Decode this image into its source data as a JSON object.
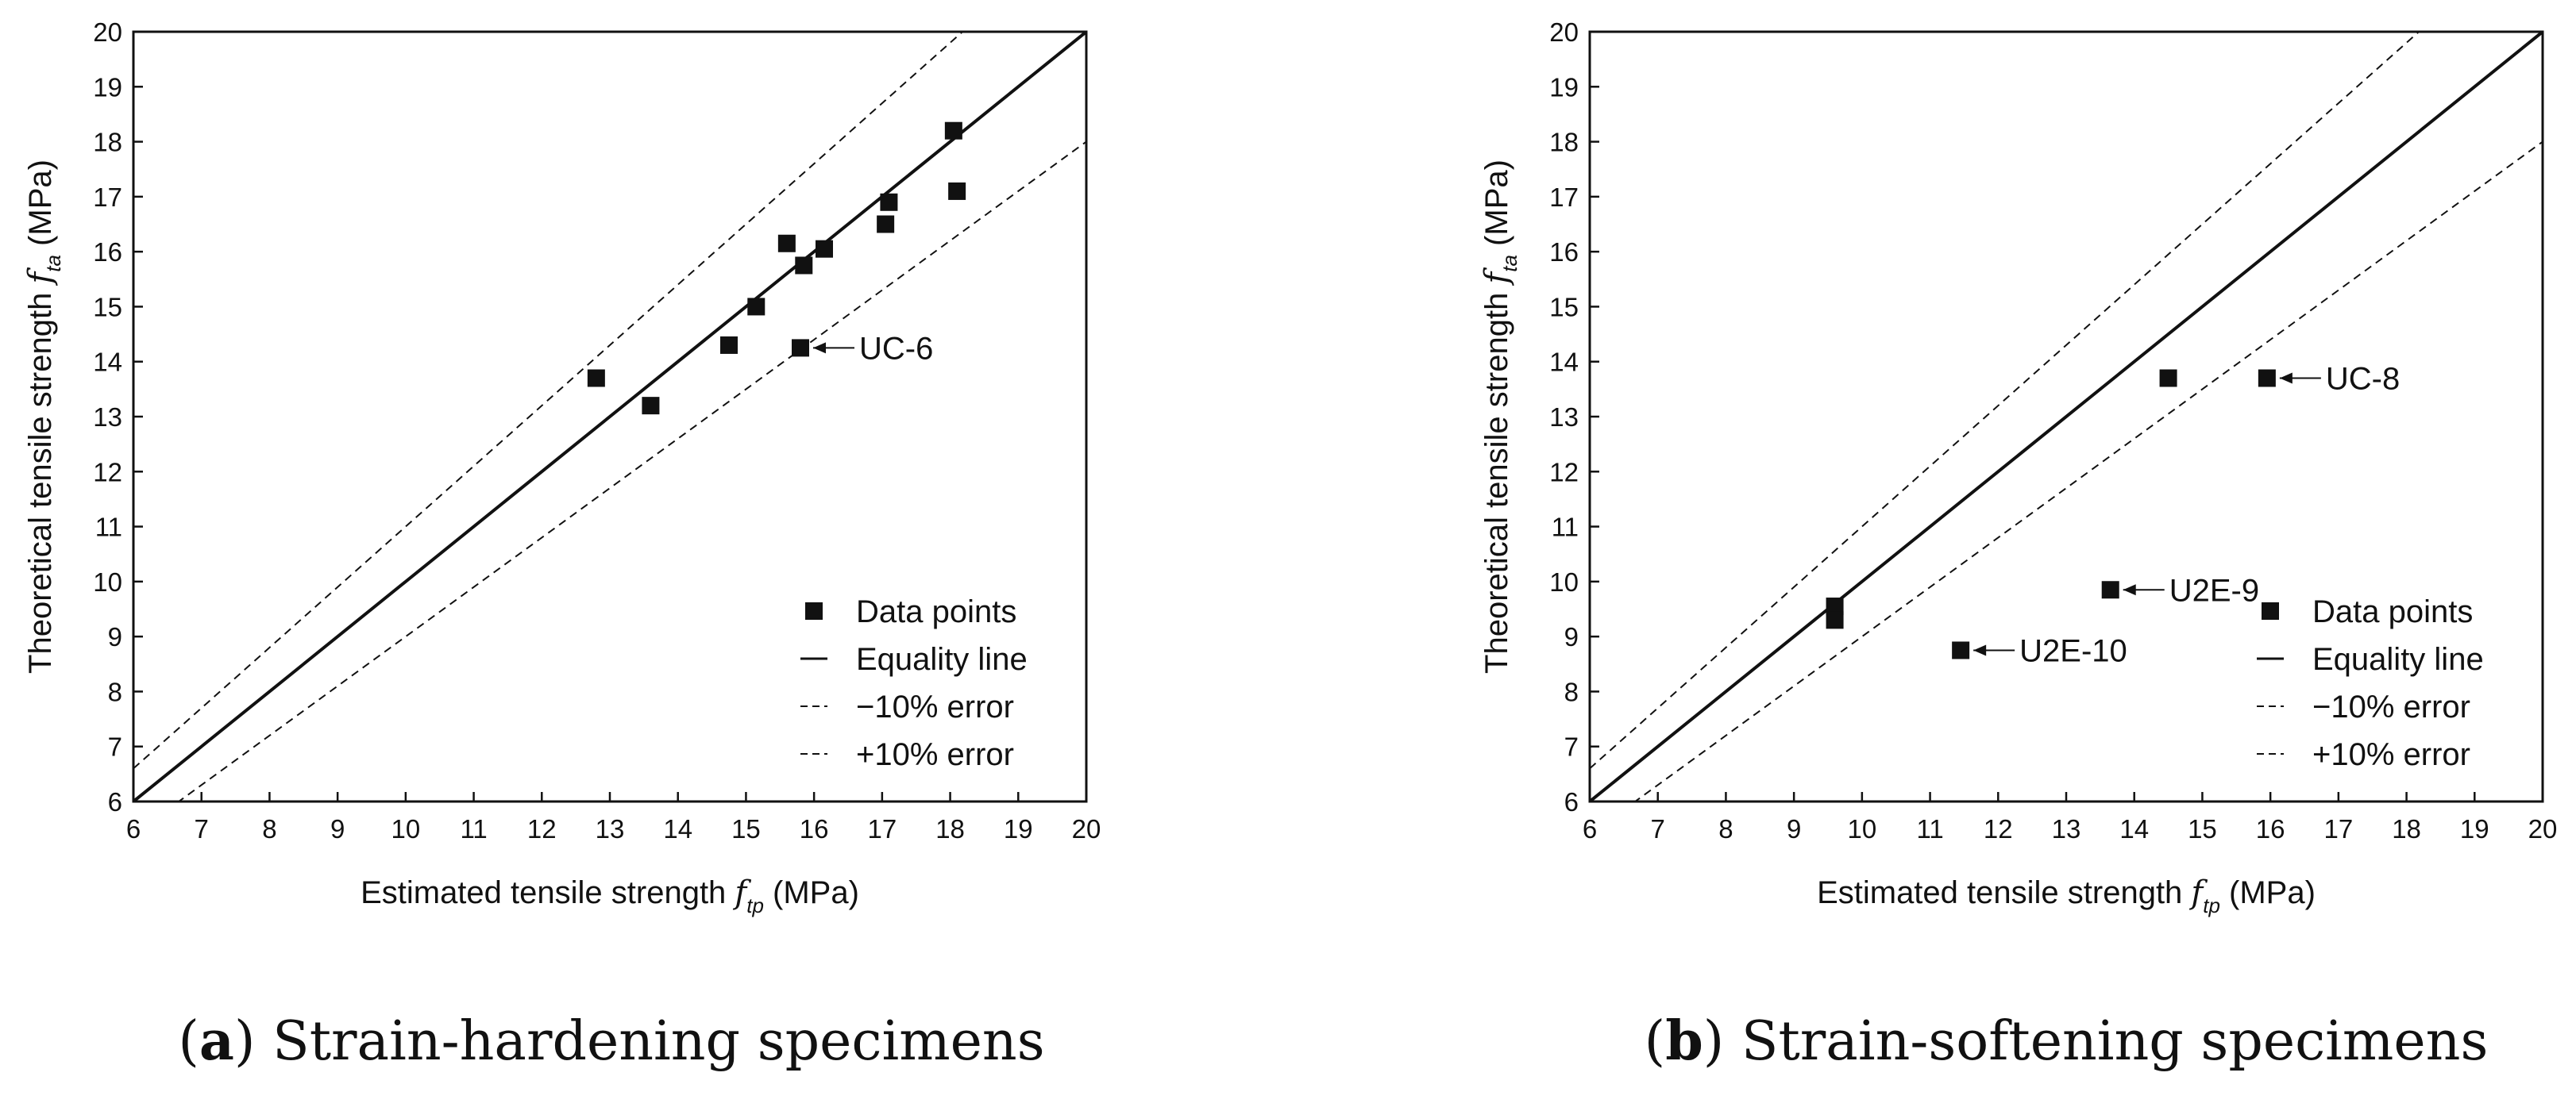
{
  "chart_data": [
    {
      "type": "scatter",
      "panel": "a",
      "caption_letter": "a",
      "caption_text": "Strain-hardening specimens",
      "xlabel_prefix": "Estimated tensile strength ",
      "xlabel_var": "f",
      "xlabel_sub": "tp",
      "xlabel_suffix": " (MPa)",
      "ylabel_prefix": "Theoretical tensile strength ",
      "ylabel_var": "f",
      "ylabel_sub": "ta",
      "ylabel_suffix": " (MPa)",
      "xlim": [
        6,
        20
      ],
      "ylim": [
        6,
        20
      ],
      "xticks": [
        6,
        7,
        8,
        9,
        10,
        11,
        12,
        13,
        14,
        15,
        16,
        17,
        18,
        19,
        20
      ],
      "yticks": [
        6,
        7,
        8,
        9,
        10,
        11,
        12,
        13,
        14,
        15,
        16,
        17,
        18,
        19,
        20
      ],
      "lines": [
        {
          "name": "Equality line",
          "slope": 1.0,
          "style": "solid"
        },
        {
          "name": "−10% error",
          "slope": 1.1,
          "style": "dashed"
        },
        {
          "name": "+10% error",
          "slope": 0.9,
          "style": "dashed"
        }
      ],
      "legend": [
        "Data points",
        "Equality line",
        "−10% error",
        "+10% error"
      ],
      "legend_position": "bottom-right",
      "points": [
        {
          "x": 12.8,
          "y": 13.7
        },
        {
          "x": 13.6,
          "y": 13.2
        },
        {
          "x": 14.75,
          "y": 14.3
        },
        {
          "x": 15.15,
          "y": 15.0
        },
        {
          "x": 15.6,
          "y": 16.15
        },
        {
          "x": 15.85,
          "y": 15.75
        },
        {
          "x": 15.8,
          "y": 14.25
        },
        {
          "x": 16.15,
          "y": 16.05
        },
        {
          "x": 17.05,
          "y": 16.5
        },
        {
          "x": 17.1,
          "y": 16.9
        },
        {
          "x": 18.05,
          "y": 18.2
        },
        {
          "x": 18.1,
          "y": 17.1
        }
      ],
      "annotations": [
        {
          "label": "UC-6",
          "x": 15.8,
          "y": 14.25
        }
      ]
    },
    {
      "type": "scatter",
      "panel": "b",
      "caption_letter": "b",
      "caption_text": "Strain-softening specimens",
      "xlabel_prefix": "Estimated tensile strength ",
      "xlabel_var": "f",
      "xlabel_sub": "tp",
      "xlabel_suffix": " (MPa)",
      "ylabel_prefix": "Theoretical tensile strength ",
      "ylabel_var": "f",
      "ylabel_sub": "ta",
      "ylabel_suffix": " (MPa)",
      "xlim": [
        6,
        20
      ],
      "ylim": [
        6,
        20
      ],
      "xticks": [
        6,
        7,
        8,
        9,
        10,
        11,
        12,
        13,
        14,
        15,
        16,
        17,
        18,
        19,
        20
      ],
      "yticks": [
        6,
        7,
        8,
        9,
        10,
        11,
        12,
        13,
        14,
        15,
        16,
        17,
        18,
        19,
        20
      ],
      "lines": [
        {
          "name": "Equality line",
          "slope": 1.0,
          "style": "solid"
        },
        {
          "name": "−10% error",
          "slope": 1.1,
          "style": "dashed"
        },
        {
          "name": "+10% error",
          "slope": 0.9,
          "style": "dashed"
        }
      ],
      "legend": [
        "Data points",
        "Equality line",
        "−10% error",
        "+10% error"
      ],
      "legend_position": "bottom-right",
      "points": [
        {
          "x": 9.6,
          "y": 9.55
        },
        {
          "x": 9.6,
          "y": 9.3
        },
        {
          "x": 11.45,
          "y": 8.75
        },
        {
          "x": 13.65,
          "y": 9.85
        },
        {
          "x": 14.5,
          "y": 13.7
        },
        {
          "x": 15.95,
          "y": 13.7
        }
      ],
      "annotations": [
        {
          "label": "UC-8",
          "x": 15.95,
          "y": 13.7
        },
        {
          "label": "U2E-9",
          "x": 13.65,
          "y": 9.85
        },
        {
          "label": "U2E-10",
          "x": 11.45,
          "y": 8.75
        }
      ]
    }
  ]
}
